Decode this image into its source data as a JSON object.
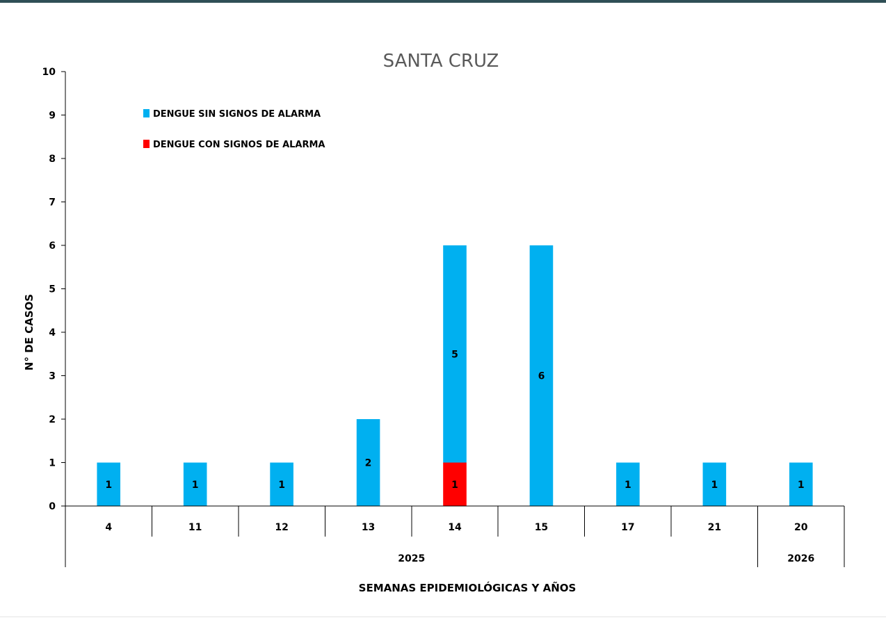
{
  "chart_data": {
    "type": "bar",
    "stacked": true,
    "title": "SANTA CRUZ",
    "xlabel": "SEMANAS EPIDEMIOLÓGICAS Y AÑOS",
    "ylabel": "N°  DE CASOS",
    "ylim": [
      0,
      10
    ],
    "yticks": [
      "0",
      "1",
      "2",
      "3",
      "4",
      "5",
      "6",
      "7",
      "8",
      "9",
      "10"
    ],
    "grid": false,
    "legend_position": "top-left",
    "categories": [
      "4",
      "11",
      "12",
      "13",
      "14",
      "15",
      "17",
      "21",
      "20"
    ],
    "groups": [
      {
        "label": "2025",
        "count": 8
      },
      {
        "label": "2026",
        "count": 1
      }
    ],
    "series": [
      {
        "name": "DENGUE CON SIGNOS DE ALARMA",
        "color": "#ff0000",
        "values": [
          0,
          0,
          0,
          0,
          1,
          0,
          0,
          0,
          0
        ],
        "labels": [
          "",
          "",
          "",
          "",
          "1",
          "",
          "",
          "",
          ""
        ]
      },
      {
        "name": "DENGUE SIN SIGNOS DE ALARMA",
        "color": "#00b0f0",
        "values": [
          1,
          1,
          1,
          2,
          5,
          6,
          1,
          1,
          1
        ],
        "labels": [
          "1",
          "1",
          "1",
          "2",
          "5",
          "6",
          "1",
          "1",
          "1"
        ]
      }
    ],
    "legend": [
      {
        "name": "DENGUE SIN SIGNOS DE ALARMA",
        "color": "#00b0f0"
      },
      {
        "name": "DENGUE CON SIGNOS DE ALARMA",
        "color": "#ff0000"
      }
    ]
  }
}
